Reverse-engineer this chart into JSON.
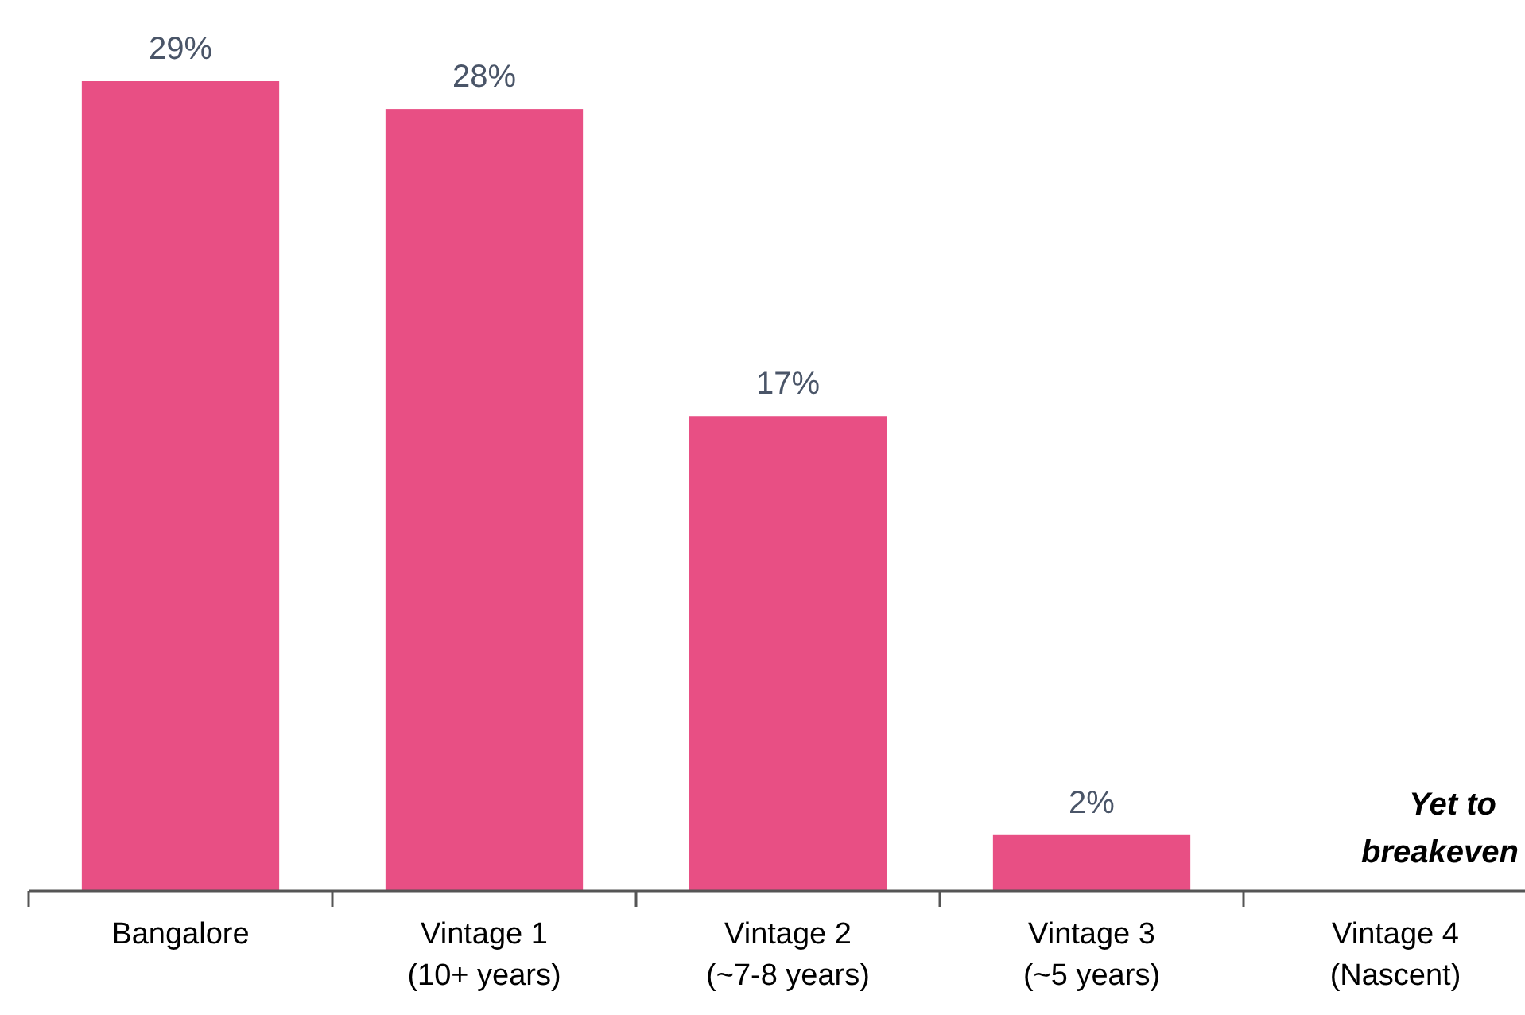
{
  "chart_data": {
    "type": "bar",
    "categories": [
      "Bangalore",
      "Vintage 1\n(10+ years)",
      "Vintage 2\n(~7-8 years)",
      "Vintage 3\n(~5 years)",
      "Vintage 4\n(Nascent)"
    ],
    "values": [
      29,
      28,
      17,
      2,
      null
    ],
    "value_labels": [
      "29%",
      "28%",
      "17%",
      "2%",
      null
    ],
    "color": "#e84f84",
    "annotations": [
      "Yet to\nbreakeven"
    ]
  }
}
